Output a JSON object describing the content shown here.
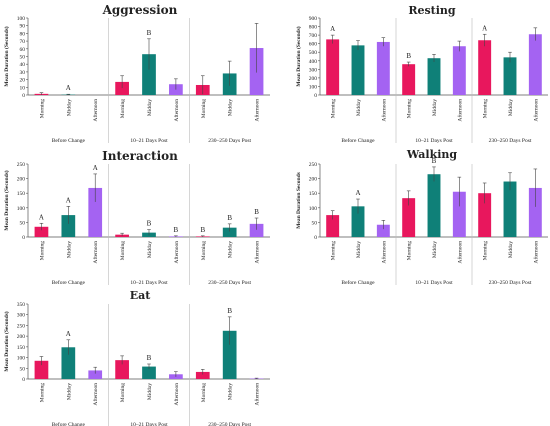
{
  "colors": {
    "Morning": "#e8175d",
    "Midday": "#0f8078",
    "Afternoon": "#a463f2"
  },
  "chart_data": [
    {
      "type": "bar",
      "title": "Aggression",
      "ylabel": "Mean Duration (Seconds)",
      "ylim": [
        0,
        100
      ],
      "yticks": [
        0,
        10,
        20,
        30,
        40,
        50,
        60,
        70,
        80,
        90,
        100
      ],
      "groups": [
        "Before Change",
        "10–21 Days Post",
        "230–250 Days Post"
      ],
      "categories": [
        "Morning",
        "Midday",
        "Afternoon"
      ],
      "values": [
        [
          1.5,
          0.5,
          0
        ],
        [
          17,
          53,
          14
        ],
        [
          13,
          28,
          61
        ]
      ],
      "errors": [
        [
          1.5,
          0.5,
          0
        ],
        [
          8,
          20,
          7
        ],
        [
          12,
          16,
          32
        ]
      ],
      "letters": [
        [
          "",
          "A",
          ""
        ],
        [
          "",
          "B",
          ""
        ],
        [
          "",
          "",
          ""
        ]
      ]
    },
    {
      "type": "bar",
      "title": "Resting",
      "ylabel": "Mean Duration (Seconds)",
      "ylim": [
        0,
        900
      ],
      "yticks": [
        0,
        100,
        200,
        300,
        400,
        500,
        600,
        700,
        800,
        900
      ],
      "groups": [
        "Before Change",
        "10–21 Days Post",
        "230–250 Days Post"
      ],
      "categories": [
        "Morning",
        "Midday",
        "Afternoon"
      ],
      "values": [
        [
          650,
          580,
          620
        ],
        [
          360,
          430,
          570
        ],
        [
          640,
          440,
          710
        ]
      ],
      "errors": [
        [
          50,
          55,
          50
        ],
        [
          25,
          45,
          60
        ],
        [
          70,
          60,
          75
        ]
      ],
      "letters": [
        [
          "A",
          "",
          ""
        ],
        [
          "B",
          "",
          ""
        ],
        [
          "A",
          "",
          ""
        ]
      ]
    },
    {
      "type": "bar",
      "title": "Interaction",
      "ylabel": "Mean Duration (Seconds)",
      "ylim": [
        0,
        250
      ],
      "yticks": [
        0,
        50,
        100,
        150,
        200,
        250
      ],
      "groups": [
        "Before Change",
        "10–21 Days Post",
        "230–250 Days Post"
      ],
      "categories": [
        "Morning",
        "Midday",
        "Afternoon"
      ],
      "values": [
        [
          35,
          75,
          168
        ],
        [
          8,
          15,
          2
        ],
        [
          2,
          32,
          45
        ]
      ],
      "errors": [
        [
          12,
          30,
          48
        ],
        [
          5,
          10,
          2
        ],
        [
          2,
          13,
          20
        ]
      ],
      "letters": [
        [
          "A",
          "A",
          "A"
        ],
        [
          "",
          "B",
          "B"
        ],
        [
          "B",
          "B",
          "B"
        ]
      ]
    },
    {
      "type": "bar",
      "title": "Walking",
      "ylabel": "Mean Duration Seconds",
      "ylim": [
        0,
        250
      ],
      "yticks": [
        0,
        50,
        100,
        150,
        200,
        250
      ],
      "groups": [
        "Before Change",
        "10–21 Days Post",
        "230–250 Days Post"
      ],
      "categories": [
        "Morning",
        "Midday",
        "Afternoon"
      ],
      "values": [
        [
          75,
          105,
          42
        ],
        [
          133,
          215,
          155
        ],
        [
          150,
          190,
          168
        ]
      ],
      "errors": [
        [
          15,
          25,
          15
        ],
        [
          25,
          25,
          50
        ],
        [
          35,
          30,
          65
        ]
      ],
      "letters": [
        [
          "",
          "A",
          ""
        ],
        [
          "",
          "B",
          ""
        ],
        [
          "",
          "",
          ""
        ]
      ]
    },
    {
      "type": "bar",
      "title": "Eat",
      "ylabel": "Mean Duration (Seconds)",
      "ylim": [
        0,
        350
      ],
      "yticks": [
        0,
        50,
        100,
        150,
        200,
        250,
        300,
        350
      ],
      "groups": [
        "Before Change",
        "10–21 Days Post",
        "230–250 Days Post"
      ],
      "categories": [
        "Morning",
        "Midday",
        "Afternoon"
      ],
      "values": [
        [
          85,
          148,
          40
        ],
        [
          88,
          58,
          22
        ],
        [
          33,
          225,
          2
        ]
      ],
      "errors": [
        [
          20,
          35,
          15
        ],
        [
          20,
          12,
          12
        ],
        [
          12,
          65,
          2
        ]
      ],
      "letters": [
        [
          "",
          "A",
          ""
        ],
        [
          "",
          "B",
          ""
        ],
        [
          "",
          "B",
          ""
        ]
      ]
    }
  ]
}
